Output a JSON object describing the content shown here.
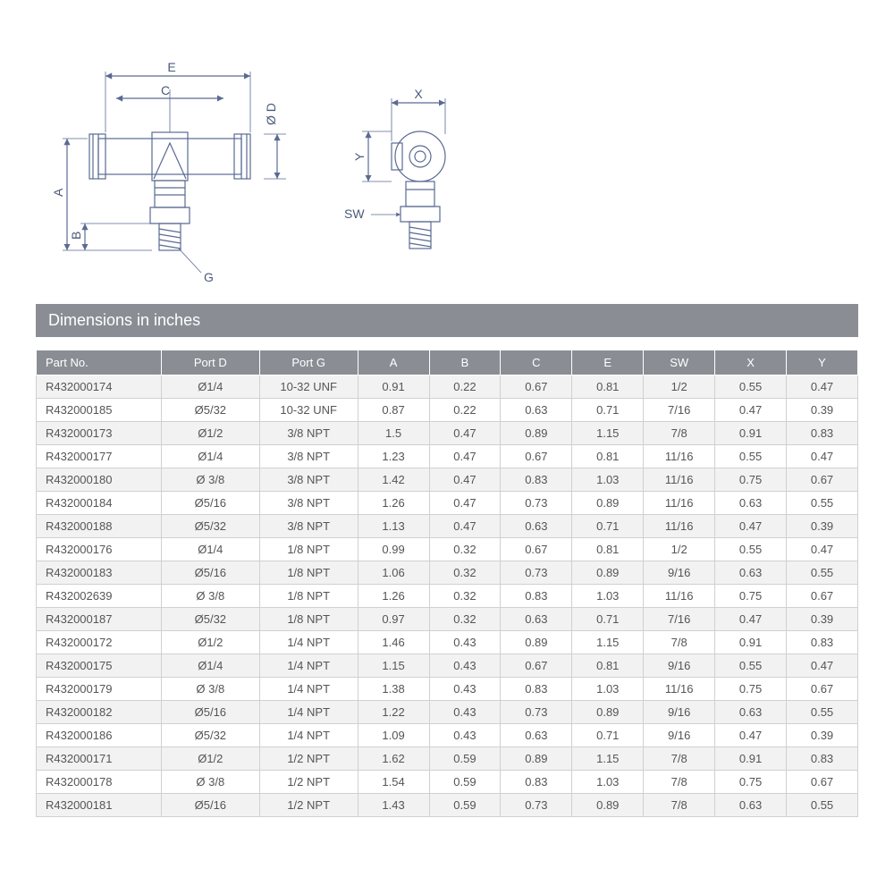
{
  "diagram": {
    "labels": {
      "E": "E",
      "C": "C",
      "D": "Ø D",
      "A": "A",
      "B": "B",
      "G": "G",
      "X": "X",
      "Y": "Y",
      "SW": "SW"
    },
    "stroke": "#5a6a92",
    "fill": "#ffffff",
    "text_color": "#4a5a7a",
    "font_size": 14
  },
  "title": "Dimensions in inches",
  "table": {
    "header_bg": "#8a8e94",
    "header_fg": "#ffffff",
    "row_even_bg": "#f2f2f2",
    "row_odd_bg": "#ffffff",
    "border_color": "#d0d0d0",
    "columns": [
      "Part No.",
      "Port D",
      "Port G",
      "A",
      "B",
      "C",
      "E",
      "SW",
      "X",
      "Y"
    ],
    "rows": [
      [
        "R432000174",
        "Ø1/4",
        "10-32 UNF",
        "0.91",
        "0.22",
        "0.67",
        "0.81",
        "1/2",
        "0.55",
        "0.47"
      ],
      [
        "R432000185",
        "Ø5/32",
        "10-32 UNF",
        "0.87",
        "0.22",
        "0.63",
        "0.71",
        "7/16",
        "0.47",
        "0.39"
      ],
      [
        "R432000173",
        "Ø1/2",
        "3/8 NPT",
        "1.5",
        "0.47",
        "0.89",
        "1.15",
        "7/8",
        "0.91",
        "0.83"
      ],
      [
        "R432000177",
        "Ø1/4",
        "3/8 NPT",
        "1.23",
        "0.47",
        "0.67",
        "0.81",
        "11/16",
        "0.55",
        "0.47"
      ],
      [
        "R432000180",
        "Ø 3/8",
        "3/8 NPT",
        "1.42",
        "0.47",
        "0.83",
        "1.03",
        "11/16",
        "0.75",
        "0.67"
      ],
      [
        "R432000184",
        "Ø5/16",
        "3/8 NPT",
        "1.26",
        "0.47",
        "0.73",
        "0.89",
        "11/16",
        "0.63",
        "0.55"
      ],
      [
        "R432000188",
        "Ø5/32",
        "3/8 NPT",
        "1.13",
        "0.47",
        "0.63",
        "0.71",
        "11/16",
        "0.47",
        "0.39"
      ],
      [
        "R432000176",
        "Ø1/4",
        "1/8 NPT",
        "0.99",
        "0.32",
        "0.67",
        "0.81",
        "1/2",
        "0.55",
        "0.47"
      ],
      [
        "R432000183",
        "Ø5/16",
        "1/8 NPT",
        "1.06",
        "0.32",
        "0.73",
        "0.89",
        "9/16",
        "0.63",
        "0.55"
      ],
      [
        "R432002639",
        "Ø 3/8",
        "1/8 NPT",
        "1.26",
        "0.32",
        "0.83",
        "1.03",
        "11/16",
        "0.75",
        "0.67"
      ],
      [
        "R432000187",
        "Ø5/32",
        "1/8 NPT",
        "0.97",
        "0.32",
        "0.63",
        "0.71",
        "7/16",
        "0.47",
        "0.39"
      ],
      [
        "R432000172",
        "Ø1/2",
        "1/4 NPT",
        "1.46",
        "0.43",
        "0.89",
        "1.15",
        "7/8",
        "0.91",
        "0.83"
      ],
      [
        "R432000175",
        "Ø1/4",
        "1/4 NPT",
        "1.15",
        "0.43",
        "0.67",
        "0.81",
        "9/16",
        "0.55",
        "0.47"
      ],
      [
        "R432000179",
        "Ø 3/8",
        "1/4 NPT",
        "1.38",
        "0.43",
        "0.83",
        "1.03",
        "11/16",
        "0.75",
        "0.67"
      ],
      [
        "R432000182",
        "Ø5/16",
        "1/4 NPT",
        "1.22",
        "0.43",
        "0.73",
        "0.89",
        "9/16",
        "0.63",
        "0.55"
      ],
      [
        "R432000186",
        "Ø5/32",
        "1/4 NPT",
        "1.09",
        "0.43",
        "0.63",
        "0.71",
        "9/16",
        "0.47",
        "0.39"
      ],
      [
        "R432000171",
        "Ø1/2",
        "1/2 NPT",
        "1.62",
        "0.59",
        "0.89",
        "1.15",
        "7/8",
        "0.91",
        "0.83"
      ],
      [
        "R432000178",
        "Ø 3/8",
        "1/2 NPT",
        "1.54",
        "0.59",
        "0.83",
        "1.03",
        "7/8",
        "0.75",
        "0.67"
      ],
      [
        "R432000181",
        "Ø5/16",
        "1/2 NPT",
        "1.43",
        "0.59",
        "0.73",
        "0.89",
        "7/8",
        "0.63",
        "0.55"
      ]
    ]
  }
}
